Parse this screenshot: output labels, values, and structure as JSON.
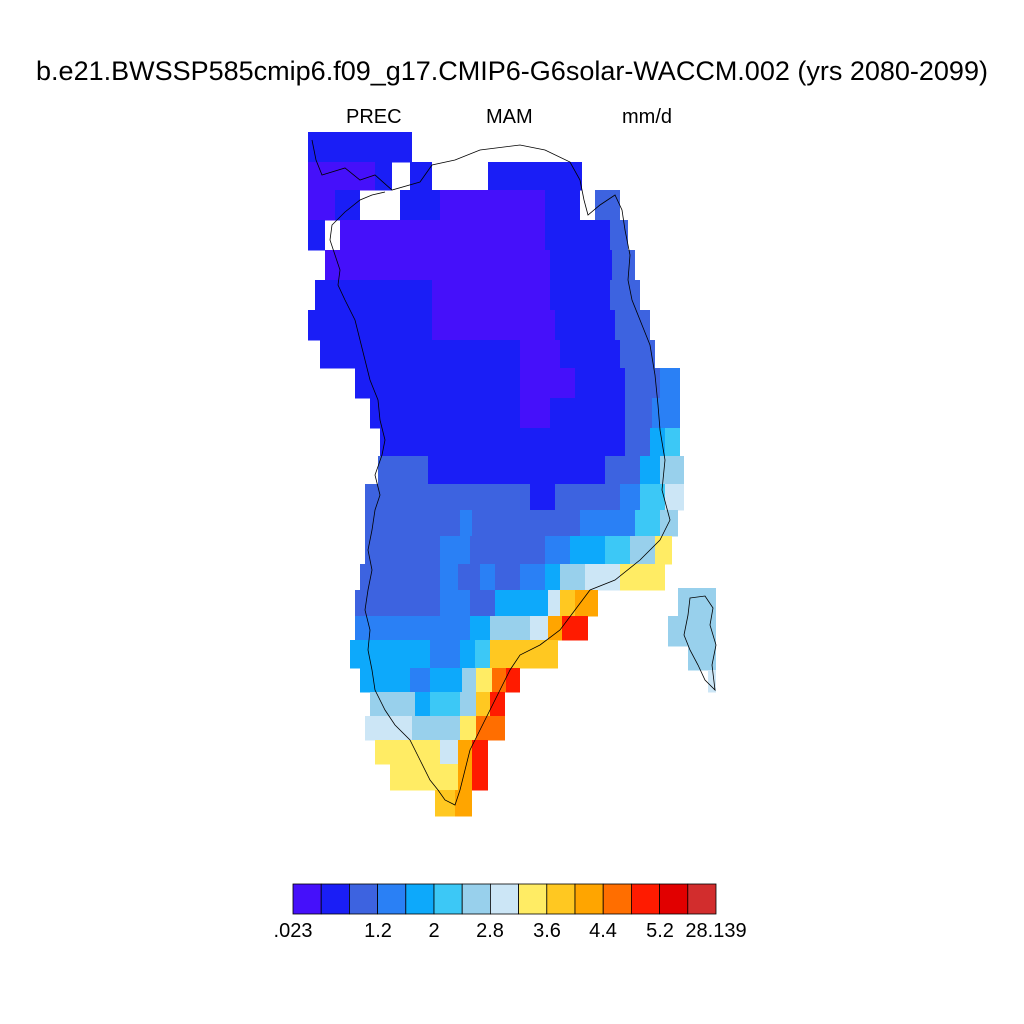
{
  "title": "b.e21.BWSSP585cmip6.f09_g17.CMIP6-G6solar-WACCM.002 (yrs 2080-2099)",
  "variable": "PREC",
  "season": "MAM",
  "units": "mm/d",
  "colorbar": {
    "colors": [
      "#4510fa",
      "#1a1ef6",
      "#3d63e0",
      "#2a80f5",
      "#0da9fb",
      "#3cc8f6",
      "#98d0ec",
      "#cce6f6",
      "#ffec64",
      "#ffc821",
      "#ffa500",
      "#ff6e00",
      "#ff1b00",
      "#e10000",
      "#d22d2d"
    ],
    "tick_labels": [
      ".023",
      "1.2",
      "2",
      "2.8",
      "3.6",
      "4.4",
      "5.2",
      "28.139"
    ]
  }
}
